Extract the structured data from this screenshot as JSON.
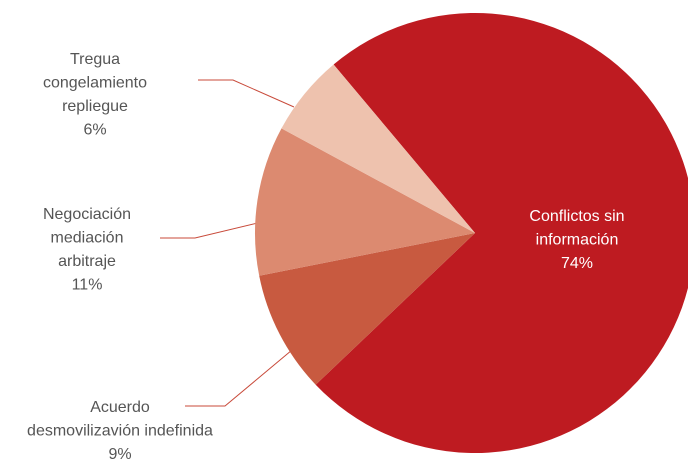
{
  "chart_data": {
    "type": "pie",
    "categories": [
      [
        "Conflictos sin",
        "información"
      ],
      [
        "Acuerdo",
        "desmovilizavión indefinida"
      ],
      [
        "Negociación",
        "mediación",
        "arbitraje"
      ],
      [
        "Tregua",
        "congelamiento",
        "repliegue"
      ]
    ],
    "values": [
      74,
      9,
      11,
      6
    ],
    "value_labels": [
      "74%",
      "9%",
      "11%",
      "6%"
    ],
    "colors": [
      "#be1b21",
      "#c85a40",
      "#dc8a70",
      "#eec2ae"
    ]
  }
}
